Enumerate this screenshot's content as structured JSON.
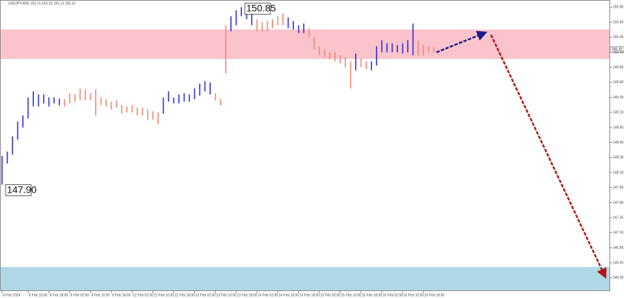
{
  "chart_data": {
    "type": "hilo",
    "title": "USDJPY,M30  150.15 150.16 150.13 150.15",
    "categories": [
      "8 Feb 2024",
      null,
      null,
      null,
      null,
      "8 Feb 10:00",
      null,
      null,
      null,
      "8 Feb 18:00",
      null,
      null,
      null,
      "9 Feb 02:00",
      null,
      null,
      null,
      "9 Feb 10:00",
      null,
      null,
      null,
      "9 Feb 18:00",
      null,
      null,
      null,
      "12 Feb 02:00",
      null,
      null,
      null,
      "12 Feb 10:00",
      null,
      null,
      null,
      "12 Feb 18:00",
      null,
      null,
      null,
      "13 Feb 02:00",
      null,
      null,
      null,
      "13 Feb 10:00",
      null,
      null,
      null,
      "13 Feb 18:00",
      null,
      null,
      null,
      "14 Feb 02:00",
      null,
      null,
      null,
      "14 Feb 10:00",
      null,
      null,
      null,
      "14 Feb 18:00",
      null,
      null,
      null,
      "15 Feb 02:00",
      null,
      null,
      null,
      "15 Feb 10:00",
      null,
      null,
      null,
      "15 Feb 18:00",
      null,
      null,
      null,
      "16 Feb 02:00",
      null,
      null,
      null,
      "16 Feb 10:00",
      null,
      null,
      null,
      "16 Feb 18:00",
      null,
      null
    ],
    "high": [
      148.38,
      148.45,
      148.7,
      148.95,
      149.05,
      149.35,
      149.45,
      149.4,
      149.4,
      149.35,
      149.35,
      149.33,
      149.32,
      149.42,
      149.4,
      149.5,
      149.48,
      149.42,
      149.48,
      149.35,
      149.32,
      149.28,
      149.3,
      149.22,
      149.2,
      149.22,
      149.18,
      149.18,
      149.15,
      149.12,
      149.1,
      149.35,
      149.45,
      149.35,
      149.4,
      149.42,
      149.4,
      149.5,
      149.58,
      149.62,
      149.6,
      149.42,
      149.32,
      150.55,
      150.7,
      150.8,
      150.85,
      150.82,
      150.75,
      150.65,
      150.6,
      150.62,
      150.65,
      150.7,
      150.75,
      150.68,
      150.62,
      150.55,
      150.58,
      150.5,
      150.35,
      150.2,
      150.15,
      150.1,
      150.1,
      150.05,
      150.02,
      149.95,
      150.08,
      150.0,
      149.95,
      149.95,
      150.2,
      150.3,
      150.25,
      150.25,
      150.22,
      150.25,
      150.3,
      150.58,
      150.3,
      150.22,
      150.2,
      150.18
    ],
    "low": [
      147.9,
      148.25,
      148.4,
      148.65,
      148.85,
      149.0,
      149.2,
      149.2,
      149.25,
      149.2,
      149.25,
      149.22,
      149.2,
      149.25,
      149.28,
      149.3,
      149.3,
      149.3,
      149.05,
      149.22,
      149.2,
      149.15,
      149.18,
      149.08,
      149.1,
      149.1,
      149.05,
      149.05,
      148.98,
      148.98,
      148.9,
      149.08,
      149.28,
      149.25,
      149.25,
      149.28,
      149.28,
      149.32,
      149.38,
      149.45,
      149.4,
      149.3,
      149.22,
      149.75,
      150.45,
      150.55,
      150.7,
      150.65,
      150.55,
      150.45,
      150.45,
      150.45,
      150.5,
      150.55,
      150.55,
      150.5,
      150.48,
      150.42,
      150.42,
      150.35,
      150.15,
      150.05,
      150.02,
      149.98,
      149.95,
      149.92,
      149.85,
      149.5,
      149.8,
      149.85,
      149.82,
      149.8,
      149.88,
      150.1,
      150.1,
      150.1,
      150.1,
      150.08,
      150.1,
      150.05,
      150.05,
      150.05,
      150.1,
      150.1
    ],
    "colors": [
      "#2b2bd6",
      "#2b2bd6",
      "#2b2bd6",
      "#2b2bd6",
      "#2b2bd6",
      "#2b2bd6",
      "#2b2bd6",
      "#2b2bd6",
      "#2b2bd6",
      "#2b2bd6",
      "#2b2bd6",
      "#2b2bd6",
      "#f08470",
      "#f08470",
      "#f08470",
      "#f08470",
      "#f08470",
      "#f08470",
      "#f08470",
      "#f08470",
      "#f08470",
      "#f08470",
      "#f08470",
      "#f08470",
      "#f08470",
      "#f08470",
      "#f08470",
      "#f08470",
      "#f08470",
      "#f08470",
      "#f08470",
      "#2b2bd6",
      "#2b2bd6",
      "#2b2bd6",
      "#2b2bd6",
      "#2b2bd6",
      "#2b2bd6",
      "#2b2bd6",
      "#2b2bd6",
      "#2b2bd6",
      "#2b2bd6",
      "#f08470",
      "#f08470",
      "#f08470",
      "#2b2bd6",
      "#2b2bd6",
      "#2b2bd6",
      "#2b2bd6",
      "#2b2bd6",
      "#f08470",
      "#f08470",
      "#f08470",
      "#f08470",
      "#f08470",
      "#f08470",
      "#2b2bd6",
      "#2b2bd6",
      "#2b2bd6",
      "#2b2bd6",
      "#f08470",
      "#f08470",
      "#f08470",
      "#f08470",
      "#f08470",
      "#f08470",
      "#f08470",
      "#f08470",
      "#f08470",
      "#2b2bd6",
      "#f08470",
      "#f08470",
      "#2b2bd6",
      "#2b2bd6",
      "#2b2bd6",
      "#2b2bd6",
      "#2b2bd6",
      "#2b2bd6",
      "#2b2bd6",
      "#2b2bd6",
      "#2b2bd6",
      "#f08470",
      "#f08470",
      "#f08470",
      "#f08470"
    ],
    "xlim": [
      -0.4,
      116.9
    ],
    "ylim": [
      146.13,
      150.97
    ],
    "yticks": [
      150.85,
      {
        "value": 150.6,
        "label": "150.60"
      },
      150.35,
      {
        "value": 150.1,
        "label": "150.10"
      },
      149.85,
      {
        "value": 149.6,
        "label": "149.60"
      },
      149.35,
      {
        "value": 149.1,
        "label": "149.10"
      },
      148.85,
      {
        "value": 148.6,
        "label": "148.60"
      },
      148.35,
      {
        "value": 148.1,
        "label": "148.10"
      },
      147.85,
      {
        "value": 147.6,
        "label": "147.60"
      },
      147.35,
      {
        "value": 147.1,
        "label": "147.10"
      },
      146.85,
      {
        "value": 146.6,
        "label": "146.60"
      },
      146.35
    ],
    "zones": [
      {
        "from": 149.99,
        "to": 150.48,
        "color": "#fbc3cb"
      },
      {
        "from": 146.13,
        "to": 146.53,
        "color": "#aed8e6"
      }
    ],
    "arrows": [
      {
        "x": [
          83.5,
          93
        ],
        "y": [
          150.1,
          150.43
        ],
        "color": "#1a1a8c"
      },
      {
        "x": [
          94,
          116
        ],
        "y": [
          150.39,
          146.36
        ],
        "color": "#b01414"
      }
    ],
    "annotations": [
      {
        "value": 150.85,
        "label": "150.85"
      },
      {
        "value": 147.9,
        "label": "147.90"
      }
    ],
    "current_price": {
      "value": 150.15,
      "label": "150.15"
    }
  }
}
